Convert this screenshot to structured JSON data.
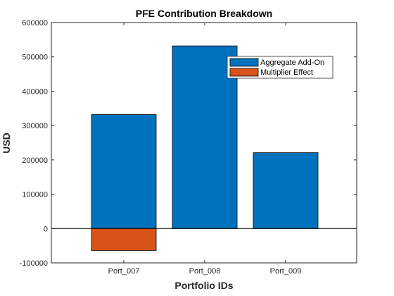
{
  "chart_data": {
    "type": "bar",
    "title": "PFE Contribution Breakdown",
    "xlabel": "Portfolio IDs",
    "ylabel": "USD",
    "categories": [
      "Port_007",
      "Port_008",
      "Port_009"
    ],
    "series": [
      {
        "name": "Aggregate Add-On",
        "values": [
          332000,
          532000,
          221000
        ],
        "color": "#0072BD"
      },
      {
        "name": "Multiplier Effect",
        "values": [
          -64000,
          0,
          0
        ],
        "color": "#D95319"
      }
    ],
    "ylim": [
      -100000,
      600000
    ],
    "yticks": [
      -100000,
      0,
      100000,
      200000,
      300000,
      400000,
      500000,
      600000
    ],
    "stacked": true,
    "grid": false,
    "legend_position": "top-right",
    "baseline": 0
  }
}
